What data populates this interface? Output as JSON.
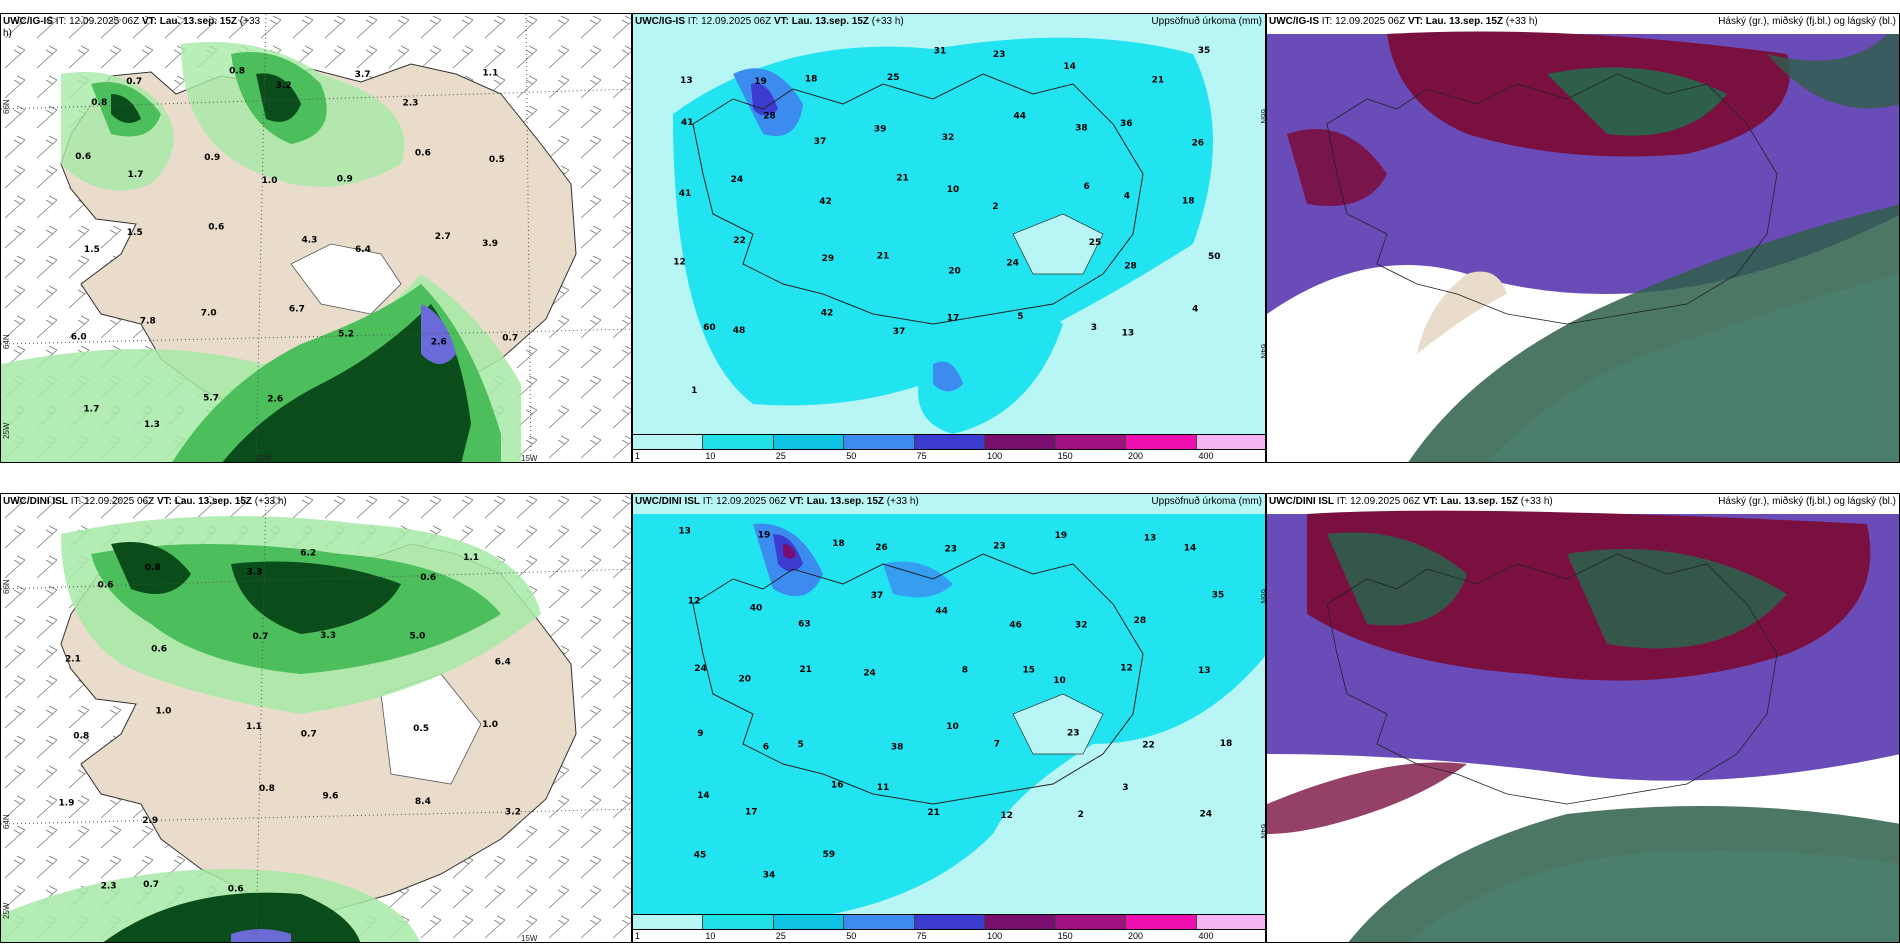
{
  "panels": {
    "p1": {
      "model_bold": "UWC/IG-IS",
      "it": "IT: 12.09.2025 06Z",
      "vt_bold": "VT: Lau. 13.sep. 15Z",
      "lead": "(+33",
      "lead2": "h)",
      "right": ""
    },
    "p2": {
      "model_bold": "UWC/IG-IS",
      "it": "IT: 12.09.2025 06Z",
      "vt_bold": "VT: Lau. 13.sep. 15Z",
      "lead": "(+33 h)",
      "right": "Uppsöfnuð úrkoma (mm)"
    },
    "p3": {
      "model_bold": "UWC/IG-IS",
      "it": "IT: 12.09.2025 06Z",
      "vt_bold": "VT: Lau. 13.sep. 15Z",
      "lead": "(+33 h)",
      "right": "Háský (gr.), miðský (fj.bl.) og lágský (bl.)"
    },
    "p4": {
      "model_bold": "UWC/DINI ISL",
      "it": "IT: 12.09.2025 06Z",
      "vt_bold": "VT: Lau. 13.sep. 15Z",
      "lead": "(+33 h)",
      "right": ""
    },
    "p5": {
      "model_bold": "UWC/DINI ISL",
      "it": "IT: 12.09.2025 06Z",
      "vt_bold": "VT: Lau. 13.sep. 15Z",
      "lead": "(+33 h)",
      "right": "Uppsöfnuð úrkoma (mm)"
    },
    "p6": {
      "model_bold": "UWC/DINI ISL",
      "it": "IT: 12.09.2025 06Z",
      "vt_bold": "VT: Lau. 13.sep. 15Z",
      "lead": "(+33 h)",
      "right": "Háský (gr.), miðský (fj.bl.) og lágský (bl.)"
    }
  },
  "axis_labels": {
    "lat66": "66N",
    "lat64": "64N",
    "lon25": "25W",
    "lon20": "20W",
    "lon15": "15W"
  },
  "colorbar": {
    "labels": [
      "1",
      "10",
      "25",
      "50",
      "75",
      "100",
      "150",
      "200",
      "400"
    ],
    "colors": [
      "#b8f5f5",
      "#22e0e8",
      "#10c4e8",
      "#3c8cf0",
      "#3c3cd0",
      "#7a0e6e",
      "#a0107e",
      "#f010b0",
      "#f6b4f2"
    ]
  },
  "colors": {
    "land": "#e9dccb",
    "precip_light": "#a6eaa6",
    "precip_mid": "#4cbf5c",
    "precip_dark": "#0b4d1a",
    "accum_base": "#22e4f0",
    "accum_light": "#b8f5f5",
    "cloud_high": "#2e5f4a",
    "cloud_mid": "#6a4cb8",
    "cloud_low": "#7a1040"
  },
  "p1_values": [
    "0.8",
    "0.7",
    "0.8",
    "3.2",
    "3.7",
    "2.3",
    "1.1",
    "0.6",
    "1.7",
    "0.9",
    "1.0",
    "0.9",
    "0.6",
    "0.5",
    "1.5",
    "1.5",
    "0.6",
    "4.3",
    "6.4",
    "2.7",
    "3.9",
    "6.0",
    "7.8",
    "7.0",
    "6.7",
    "5.2",
    "2.6",
    "0.7",
    "1.7",
    "1.3",
    "5.7",
    "2.6"
  ],
  "p2_values": [
    "13",
    "19",
    "18",
    "25",
    "31",
    "23",
    "14",
    "21",
    "35",
    "41",
    "28",
    "37",
    "39",
    "32",
    "44",
    "38",
    "36",
    "26",
    "41",
    "24",
    "42",
    "21",
    "10",
    "2",
    "6",
    "4",
    "18",
    "12",
    "22",
    "29",
    "21",
    "20",
    "24",
    "25",
    "28",
    "50",
    "60",
    "48",
    "42",
    "37",
    "17",
    "5",
    "3",
    "13",
    "4",
    "1"
  ],
  "p4_values": [
    "0.6",
    "0.8",
    "3.3",
    "6.2",
    "0.6",
    "1.1",
    "2.1",
    "0.6",
    "0.7",
    "3.3",
    "5.0",
    "6.4",
    "0.8",
    "1.0",
    "1.1",
    "0.7",
    "0.5",
    "1.0",
    "1.9",
    "2.9",
    "0.8",
    "9.6",
    "8.4",
    "3.2",
    "2.3",
    "0.7",
    "0.6"
  ],
  "p5_values": [
    "13",
    "19",
    "18",
    "26",
    "23",
    "23",
    "19",
    "13",
    "14",
    "12",
    "40",
    "63",
    "37",
    "44",
    "46",
    "32",
    "28",
    "35",
    "24",
    "20",
    "21",
    "24",
    "8",
    "15",
    "10",
    "12",
    "13",
    "9",
    "6",
    "5",
    "38",
    "10",
    "7",
    "23",
    "22",
    "18",
    "14",
    "17",
    "16",
    "11",
    "21",
    "12",
    "2",
    "3",
    "24",
    "45",
    "34",
    "59"
  ]
}
